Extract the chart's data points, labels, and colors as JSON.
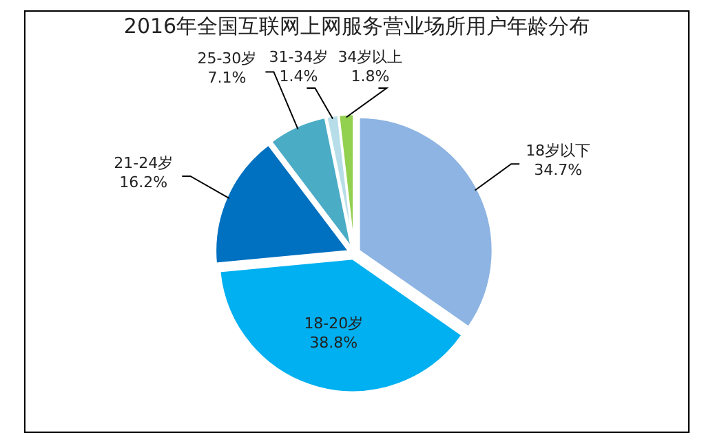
{
  "chart_data": {
    "type": "pie",
    "value_labels": [
      "34.7%",
      "38.8%",
      "16.2%",
      "7.1%",
      "1.4%",
      "1.8%"
    ],
    "title": "2016年全国互联网上网服务营业场所用户年龄分布",
    "categories": [
      "18岁以下",
      "18-20岁",
      "21-24岁",
      "25-30岁",
      "31-34岁",
      "34岁以上"
    ],
    "values": [
      34.7,
      38.8,
      16.2,
      7.1,
      1.4,
      1.8
    ],
    "colors": [
      "#8db4e2",
      "#00b0f0",
      "#0070c0",
      "#4bacc6",
      "#b7dee8",
      "#92d050"
    ]
  }
}
